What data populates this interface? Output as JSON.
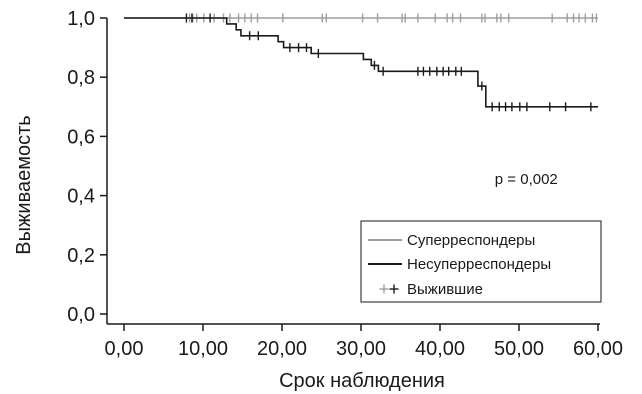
{
  "chart_data": {
    "type": "line",
    "xlabel": "Срок наблюдения",
    "ylabel": "Выживаемость",
    "xlim": [
      0,
      60
    ],
    "ylim": [
      0,
      1
    ],
    "x_ticks": [
      0,
      10,
      20,
      30,
      40,
      50,
      60
    ],
    "x_tick_labels": [
      "0,00",
      "10,00",
      "20,00",
      "30,00",
      "40,00",
      "50,00",
      "60,00"
    ],
    "y_ticks": [
      0,
      0.2,
      0.4,
      0.6,
      0.8,
      1.0
    ],
    "y_tick_labels": [
      "0,0",
      "0,2",
      "0,4",
      "0,6",
      "0,8",
      "1,0"
    ],
    "grid": false,
    "annotations": [
      {
        "text": "p = 0,002",
        "x": 52,
        "y": 0.44
      }
    ],
    "legend": {
      "placement": "bottom-right",
      "entries": [
        {
          "label": "Суперреспондеры",
          "kind": "line",
          "series": 0
        },
        {
          "label": "Несуперреспондеры",
          "kind": "line",
          "series": 1
        },
        {
          "label": "Выжившие",
          "kind": "censor"
        }
      ]
    },
    "series": [
      {
        "name": "Суперреспондеры",
        "color": "#9e9e9e",
        "steps": [
          [
            0,
            1.0
          ],
          [
            60,
            1.0
          ]
        ],
        "censored": [
          [
            8.3,
            1.0
          ],
          [
            8.7,
            1.0
          ],
          [
            9.2,
            1.0
          ],
          [
            10.1,
            1.0
          ],
          [
            11.4,
            1.0
          ],
          [
            12.6,
            1.0
          ],
          [
            13.4,
            1.0
          ],
          [
            14.5,
            1.0
          ],
          [
            15.3,
            1.0
          ],
          [
            16.1,
            1.0
          ],
          [
            16.9,
            1.0
          ],
          [
            20.1,
            1.0
          ],
          [
            25.1,
            1.0
          ],
          [
            25.6,
            1.0
          ],
          [
            30.2,
            1.0
          ],
          [
            32.1,
            1.0
          ],
          [
            35.2,
            1.0
          ],
          [
            35.6,
            1.0
          ],
          [
            37.2,
            1.0
          ],
          [
            39.4,
            1.0
          ],
          [
            40.9,
            1.0
          ],
          [
            41.6,
            1.0
          ],
          [
            42.6,
            1.0
          ],
          [
            45.3,
            1.0
          ],
          [
            45.7,
            1.0
          ],
          [
            47.2,
            1.0
          ],
          [
            47.7,
            1.0
          ],
          [
            48.7,
            1.0
          ],
          [
            54.2,
            1.0
          ],
          [
            56.1,
            1.0
          ],
          [
            56.9,
            1.0
          ],
          [
            57.6,
            1.0
          ],
          [
            58.4,
            1.0
          ],
          [
            59.3,
            1.0
          ],
          [
            59.8,
            1.0
          ]
        ]
      },
      {
        "name": "Несуперреспондеры",
        "color": "#1a1a1a",
        "steps": [
          [
            0,
            1.0
          ],
          [
            13.0,
            1.0
          ],
          [
            13.0,
            0.98
          ],
          [
            14.2,
            0.98
          ],
          [
            14.2,
            0.96
          ],
          [
            14.8,
            0.96
          ],
          [
            14.8,
            0.94
          ],
          [
            19.5,
            0.94
          ],
          [
            19.5,
            0.92
          ],
          [
            20.2,
            0.92
          ],
          [
            20.2,
            0.9
          ],
          [
            23.7,
            0.9
          ],
          [
            23.7,
            0.88
          ],
          [
            30.3,
            0.88
          ],
          [
            30.3,
            0.86
          ],
          [
            31.3,
            0.86
          ],
          [
            31.3,
            0.84
          ],
          [
            32.2,
            0.84
          ],
          [
            32.2,
            0.82
          ],
          [
            44.8,
            0.82
          ],
          [
            44.8,
            0.77
          ],
          [
            45.8,
            0.77
          ],
          [
            45.8,
            0.7
          ],
          [
            60,
            0.7
          ]
        ],
        "censored": [
          [
            7.9,
            1.0
          ],
          [
            8.6,
            1.0
          ],
          [
            10.9,
            1.0
          ],
          [
            15.9,
            0.94
          ],
          [
            17.0,
            0.94
          ],
          [
            21.0,
            0.9
          ],
          [
            22.1,
            0.9
          ],
          [
            23.1,
            0.9
          ],
          [
            24.6,
            0.88
          ],
          [
            31.7,
            0.84
          ],
          [
            32.8,
            0.82
          ],
          [
            37.2,
            0.82
          ],
          [
            37.9,
            0.82
          ],
          [
            38.7,
            0.82
          ],
          [
            39.6,
            0.82
          ],
          [
            40.4,
            0.82
          ],
          [
            41.1,
            0.82
          ],
          [
            42.0,
            0.82
          ],
          [
            42.7,
            0.82
          ],
          [
            45.3,
            0.77
          ],
          [
            46.6,
            0.7
          ],
          [
            47.5,
            0.7
          ],
          [
            48.3,
            0.7
          ],
          [
            49.1,
            0.7
          ],
          [
            50.1,
            0.7
          ],
          [
            51.0,
            0.7
          ],
          [
            53.9,
            0.7
          ],
          [
            55.9,
            0.7
          ],
          [
            59.1,
            0.7
          ]
        ]
      }
    ]
  }
}
